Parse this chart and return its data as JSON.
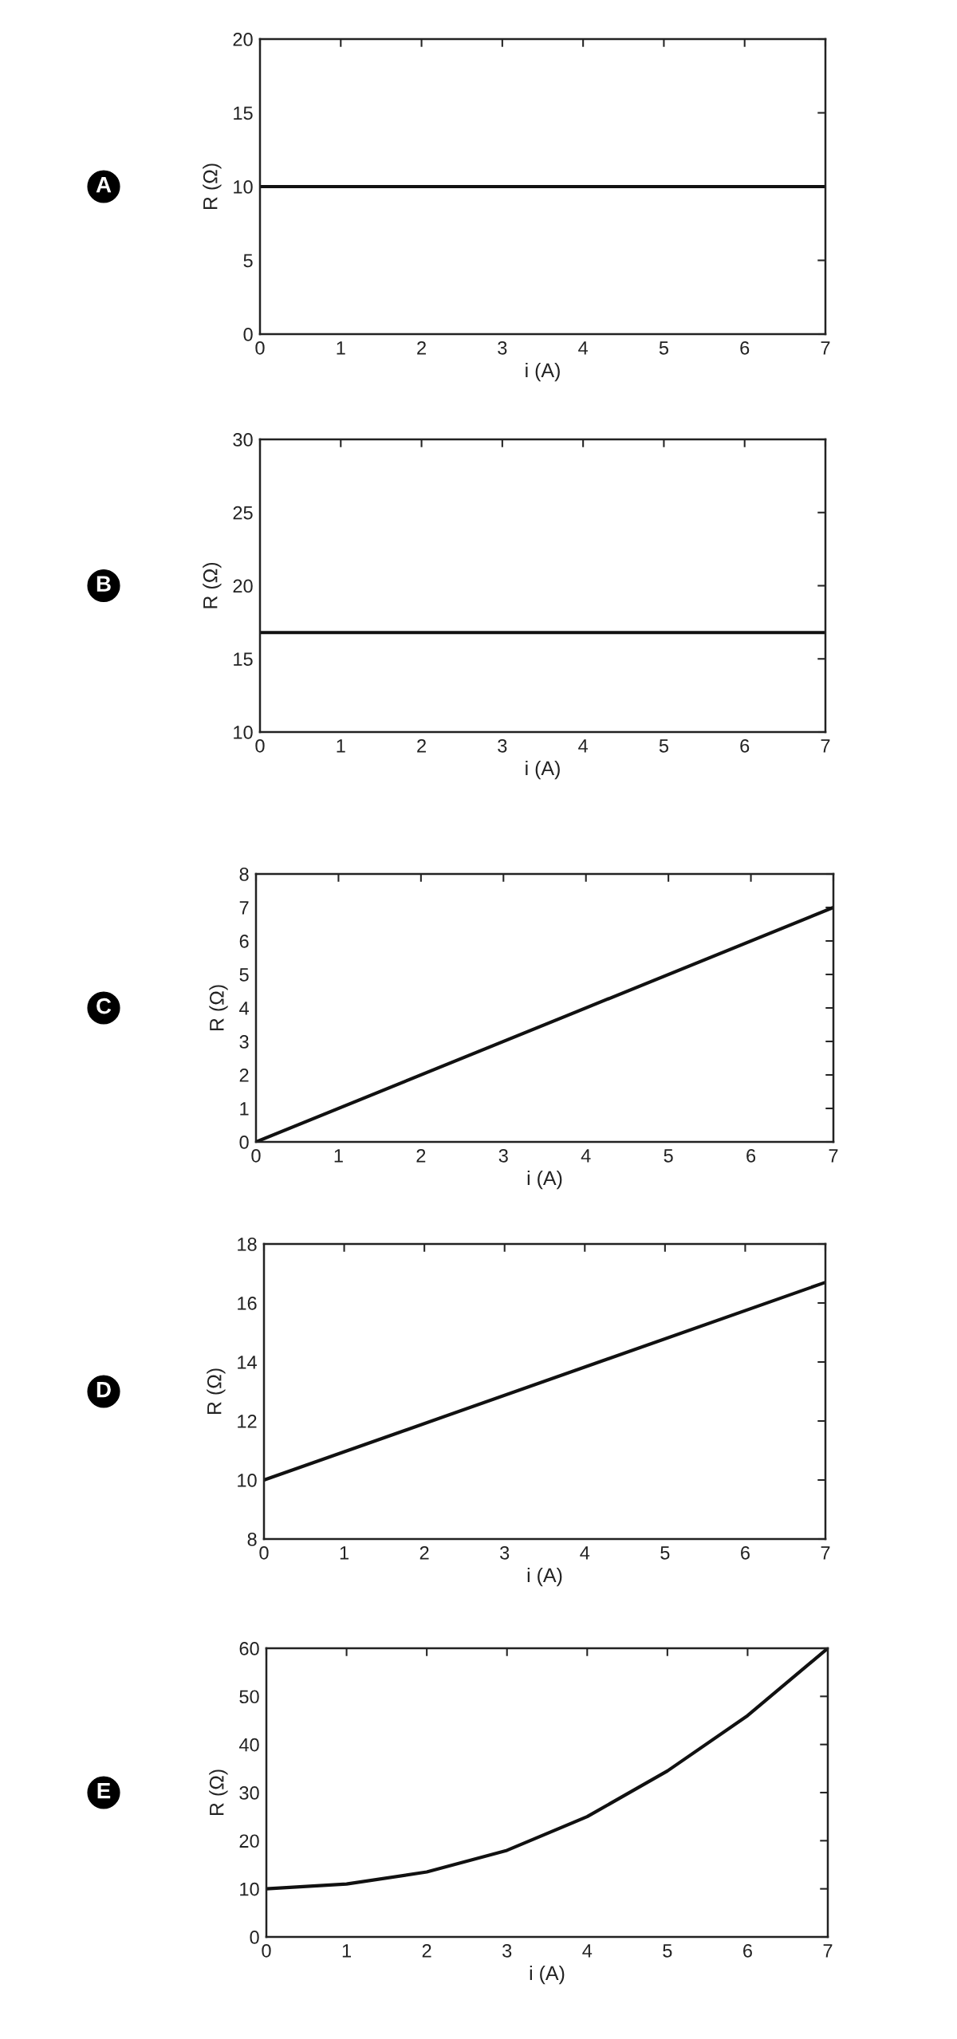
{
  "chart_data": [
    {
      "type": "line",
      "annotations": [
        "A"
      ],
      "xlabel": "i (A)",
      "ylabel": "R (Ω)",
      "x": [
        0,
        7
      ],
      "xlim": [
        0,
        7
      ],
      "xticks": [
        0,
        1,
        2,
        3,
        4,
        5,
        6,
        7
      ],
      "ylim": [
        0,
        20
      ],
      "yticks": [
        0,
        5,
        10,
        15,
        20
      ],
      "grid": false,
      "series": [
        {
          "color": "#111111",
          "values": [
            10,
            10
          ]
        }
      ]
    },
    {
      "type": "line",
      "annotations": [
        "B"
      ],
      "xlabel": "i (A)",
      "ylabel": "R (Ω)",
      "x": [
        0,
        7
      ],
      "xlim": [
        0,
        7
      ],
      "xticks": [
        0,
        1,
        2,
        3,
        4,
        5,
        6,
        7
      ],
      "ylim": [
        10,
        30
      ],
      "yticks": [
        10,
        15,
        20,
        25,
        30
      ],
      "grid": false,
      "series": [
        {
          "color": "#111111",
          "values": [
            16.8,
            16.8
          ]
        }
      ]
    },
    {
      "type": "line",
      "annotations": [
        "C"
      ],
      "xlabel": "i (A)",
      "ylabel": "R (Ω)",
      "x": [
        0,
        7
      ],
      "xlim": [
        0,
        7
      ],
      "xticks": [
        0,
        1,
        2,
        3,
        4,
        5,
        6,
        7
      ],
      "ylim": [
        0,
        8
      ],
      "yticks": [
        0,
        1,
        2,
        3,
        4,
        5,
        6,
        7,
        8
      ],
      "grid": false,
      "series": [
        {
          "color": "#111111",
          "values": [
            0,
            7
          ]
        }
      ]
    },
    {
      "type": "line",
      "annotations": [
        "D"
      ],
      "xlabel": "i (A)",
      "ylabel": "R (Ω)",
      "x": [
        0,
        7
      ],
      "xlim": [
        0,
        7
      ],
      "xticks": [
        0,
        1,
        2,
        3,
        4,
        5,
        6,
        7
      ],
      "ylim": [
        8,
        18
      ],
      "yticks": [
        8,
        10,
        12,
        14,
        16,
        18
      ],
      "grid": false,
      "series": [
        {
          "color": "#111111",
          "values": [
            10,
            16.7
          ]
        }
      ]
    },
    {
      "type": "line",
      "annotations": [
        "E"
      ],
      "xlabel": "i (A)",
      "ylabel": "R (Ω)",
      "x": [
        0,
        1,
        2,
        3,
        4,
        5,
        6,
        7
      ],
      "xlim": [
        0,
        7
      ],
      "xticks": [
        0,
        1,
        2,
        3,
        4,
        5,
        6,
        7
      ],
      "ylim": [
        0,
        60
      ],
      "yticks": [
        0,
        10,
        20,
        30,
        40,
        50,
        60
      ],
      "grid": false,
      "series": [
        {
          "color": "#111111",
          "values": [
            10,
            11,
            13.5,
            18,
            25,
            34.5,
            46,
            60
          ]
        }
      ]
    }
  ]
}
